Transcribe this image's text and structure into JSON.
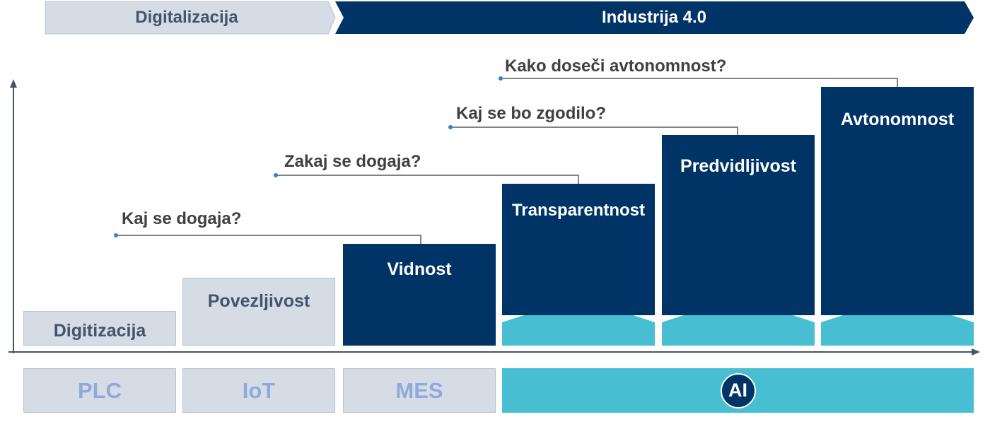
{
  "header": {
    "left_label": "Digitalizacija",
    "right_label": "Industrija 4.0"
  },
  "stages": [
    {
      "label": "Digitizacija",
      "style": "light"
    },
    {
      "label": "Povezljivost",
      "style": "light"
    },
    {
      "label": "Vidnost",
      "style": "dark"
    },
    {
      "label": "Transparentnost",
      "style": "dark"
    },
    {
      "label": "Predvidljivost",
      "style": "dark"
    },
    {
      "label": "Avtonomnost",
      "style": "dark"
    }
  ],
  "questions": [
    {
      "text": "Kaj se dogaja?"
    },
    {
      "text": "Zakaj se dogaja?"
    },
    {
      "text": "Kaj se bo zgodilo?"
    },
    {
      "text": "Kako doseči avtonomnost?"
    }
  ],
  "technologies": [
    {
      "label": "PLC"
    },
    {
      "label": "IoT"
    },
    {
      "label": "MES"
    },
    {
      "label": "AI"
    }
  ],
  "colors": {
    "dark_navy": "#003366",
    "light_gray": "#d6dce5",
    "light_text": "#44546a",
    "teal": "#48bed2",
    "tech_text": "#8eaadb",
    "connector_dot": "#2f80d1"
  }
}
